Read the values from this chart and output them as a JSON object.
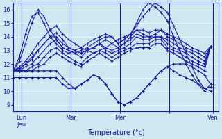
{
  "xlabel": "Température (°c)",
  "bg_color": "#cde8f0",
  "line_color": "#1a1aaa",
  "xlim": [
    0,
    100
  ],
  "ylim": [
    8.5,
    16.5
  ],
  "yticks": [
    9,
    10,
    11,
    12,
    13,
    14,
    15,
    16
  ],
  "day_positions": [
    4,
    28,
    52,
    76,
    97
  ],
  "day_labels": [
    "Lun\nJeu",
    "Mar",
    "Mer",
    "",
    "Ven"
  ],
  "series": [
    {
      "x": [
        0,
        3,
        6,
        9,
        12,
        15,
        18,
        21,
        24,
        27,
        30,
        33,
        36,
        39,
        42,
        45,
        48,
        51,
        54,
        57,
        60,
        63,
        66,
        69,
        72,
        75,
        78,
        81,
        84,
        87,
        90,
        93,
        96
      ],
      "y": [
        11.5,
        11.7,
        12.0,
        12.5,
        13.0,
        13.5,
        14.0,
        14.3,
        13.8,
        13.2,
        13.0,
        12.8,
        13.0,
        13.2,
        13.5,
        13.8,
        13.5,
        13.2,
        13.5,
        14.0,
        14.5,
        14.2,
        14.0,
        14.0,
        14.0,
        13.8,
        13.5,
        13.2,
        13.0,
        12.8,
        12.5,
        12.2,
        13.3
      ]
    },
    {
      "x": [
        0,
        3,
        6,
        9,
        12,
        15,
        18,
        21,
        24,
        27,
        30,
        33,
        36,
        39,
        42,
        45,
        48,
        51,
        54,
        57,
        60,
        63,
        66,
        69,
        72,
        75,
        78,
        81,
        84,
        87,
        90,
        93,
        96
      ],
      "y": [
        11.5,
        11.8,
        12.2,
        12.8,
        13.5,
        14.0,
        14.5,
        14.8,
        14.2,
        13.8,
        13.5,
        13.2,
        13.0,
        12.8,
        13.0,
        13.2,
        13.5,
        13.8,
        14.0,
        14.2,
        14.5,
        14.5,
        14.3,
        14.5,
        14.5,
        14.2,
        14.0,
        13.8,
        13.5,
        13.2,
        13.0,
        12.8,
        13.3
      ]
    },
    {
      "x": [
        0,
        3,
        6,
        9,
        12,
        15,
        18,
        21,
        24,
        27,
        30,
        33,
        36,
        39,
        42,
        45,
        48,
        51,
        54,
        57,
        60,
        63,
        66,
        69,
        72,
        75,
        78,
        81,
        84,
        87,
        90,
        93,
        96
      ],
      "y": [
        11.5,
        11.6,
        12.0,
        12.3,
        13.0,
        13.5,
        14.0,
        14.0,
        13.5,
        13.2,
        13.0,
        12.8,
        13.0,
        13.2,
        13.5,
        13.2,
        13.0,
        13.2,
        13.5,
        13.8,
        14.2,
        14.0,
        14.0,
        14.2,
        14.5,
        14.0,
        13.8,
        13.5,
        13.2,
        13.0,
        12.8,
        12.5,
        13.3
      ]
    },
    {
      "x": [
        0,
        3,
        6,
        9,
        12,
        15,
        18,
        21,
        24,
        27,
        30,
        33,
        36,
        39,
        42,
        45,
        48,
        51,
        54,
        57,
        60,
        63,
        66,
        69,
        72,
        75,
        78,
        81,
        84,
        87,
        90,
        93,
        96
      ],
      "y": [
        11.5,
        11.5,
        11.8,
        12.0,
        12.5,
        13.0,
        13.5,
        13.8,
        13.2,
        13.0,
        12.8,
        12.5,
        13.0,
        13.2,
        13.5,
        13.0,
        12.8,
        13.0,
        13.2,
        13.5,
        14.0,
        13.8,
        13.8,
        14.0,
        14.0,
        13.5,
        13.2,
        13.0,
        12.8,
        12.5,
        12.2,
        12.0,
        13.3
      ]
    },
    {
      "x": [
        0,
        3,
        6,
        9,
        12,
        15,
        18,
        21,
        24,
        27,
        30,
        33,
        36,
        39,
        42,
        45,
        48,
        51,
        54,
        57,
        60,
        63,
        66,
        69,
        72,
        75,
        78,
        81,
        84,
        87,
        90,
        93,
        96
      ],
      "y": [
        11.5,
        11.5,
        11.5,
        11.8,
        12.0,
        12.5,
        13.0,
        13.2,
        12.8,
        12.5,
        12.2,
        12.0,
        12.5,
        12.8,
        13.0,
        12.8,
        12.5,
        12.8,
        13.0,
        13.2,
        13.5,
        13.5,
        13.5,
        13.8,
        13.8,
        13.2,
        13.0,
        12.8,
        12.5,
        12.2,
        12.0,
        11.8,
        13.3
      ]
    },
    {
      "x": [
        0,
        3,
        6,
        9,
        12,
        15,
        18,
        21,
        24,
        27,
        30,
        33,
        36,
        39,
        42,
        45,
        48,
        51,
        54,
        57,
        60,
        63,
        66,
        69,
        72,
        75,
        78,
        81,
        84,
        87,
        90,
        93,
        96
      ],
      "y": [
        11.5,
        11.5,
        11.5,
        11.5,
        11.8,
        12.0,
        12.5,
        12.8,
        12.5,
        12.2,
        12.0,
        11.8,
        12.2,
        12.5,
        12.8,
        12.5,
        12.2,
        12.5,
        12.8,
        13.0,
        13.2,
        13.2,
        13.2,
        13.5,
        13.5,
        13.0,
        12.8,
        12.5,
        12.2,
        12.0,
        11.8,
        11.5,
        13.3
      ]
    },
    {
      "x": [
        0,
        3,
        6,
        9,
        12,
        15,
        18,
        21,
        24,
        27,
        30,
        33,
        36,
        39,
        42,
        45,
        48,
        51,
        54,
        57,
        60,
        63,
        66,
        69,
        72,
        75,
        78,
        81,
        84,
        87,
        90,
        93,
        96
      ],
      "y": [
        11.5,
        12.2,
        13.5,
        15.0,
        16.0,
        15.5,
        14.5,
        13.8,
        13.2,
        13.0,
        12.8,
        13.0,
        13.2,
        13.5,
        13.8,
        14.0,
        14.0,
        13.5,
        13.8,
        14.2,
        14.8,
        15.5,
        16.0,
        16.5,
        16.2,
        15.8,
        14.8,
        13.8,
        12.8,
        11.8,
        10.8,
        10.2,
        10.0
      ]
    },
    {
      "x": [
        0,
        3,
        6,
        9,
        12,
        15,
        18,
        21,
        24,
        27,
        30,
        33,
        36,
        39,
        42,
        45,
        48,
        51,
        54,
        57,
        60,
        63,
        66,
        69,
        72,
        75,
        78,
        81,
        84,
        87,
        90,
        93,
        96
      ],
      "y": [
        11.5,
        12.5,
        14.2,
        15.5,
        15.8,
        15.0,
        14.0,
        13.5,
        13.0,
        12.8,
        13.0,
        13.2,
        13.5,
        13.8,
        14.0,
        14.2,
        14.0,
        13.5,
        13.8,
        14.2,
        15.0,
        16.0,
        16.5,
        16.2,
        15.8,
        15.2,
        14.0,
        13.0,
        12.0,
        11.2,
        10.5,
        10.0,
        10.5
      ]
    },
    {
      "x": [
        0,
        3,
        6,
        9,
        12,
        15,
        18,
        21,
        24,
        27,
        30,
        33,
        36,
        39,
        42,
        45,
        48,
        51,
        54,
        57,
        60,
        63,
        66,
        69,
        72,
        75,
        78,
        81,
        84,
        87,
        90,
        93,
        96
      ],
      "y": [
        11.5,
        11.5,
        11.5,
        11.5,
        11.5,
        11.5,
        11.5,
        11.5,
        11.0,
        10.5,
        10.2,
        10.5,
        10.8,
        11.2,
        11.0,
        10.5,
        9.8,
        9.2,
        9.0,
        9.2,
        9.5,
        10.0,
        10.5,
        11.0,
        11.5,
        11.8,
        12.0,
        12.0,
        12.0,
        11.8,
        11.5,
        11.2,
        10.5
      ]
    },
    {
      "x": [
        0,
        3,
        6,
        9,
        12,
        15,
        18,
        21,
        24,
        27,
        30,
        33,
        36,
        39,
        42,
        45,
        48,
        51,
        54,
        57,
        60,
        63,
        66,
        69,
        72,
        75,
        78,
        81,
        84,
        87,
        90,
        93,
        96
      ],
      "y": [
        11.0,
        11.0,
        11.0,
        11.0,
        11.0,
        11.0,
        11.0,
        11.0,
        10.5,
        10.2,
        10.2,
        10.5,
        10.8,
        11.2,
        11.0,
        10.5,
        9.8,
        9.2,
        9.0,
        9.2,
        9.5,
        10.0,
        10.5,
        11.0,
        11.5,
        11.8,
        11.5,
        11.2,
        11.0,
        10.8,
        10.5,
        10.2,
        10.3
      ]
    }
  ]
}
